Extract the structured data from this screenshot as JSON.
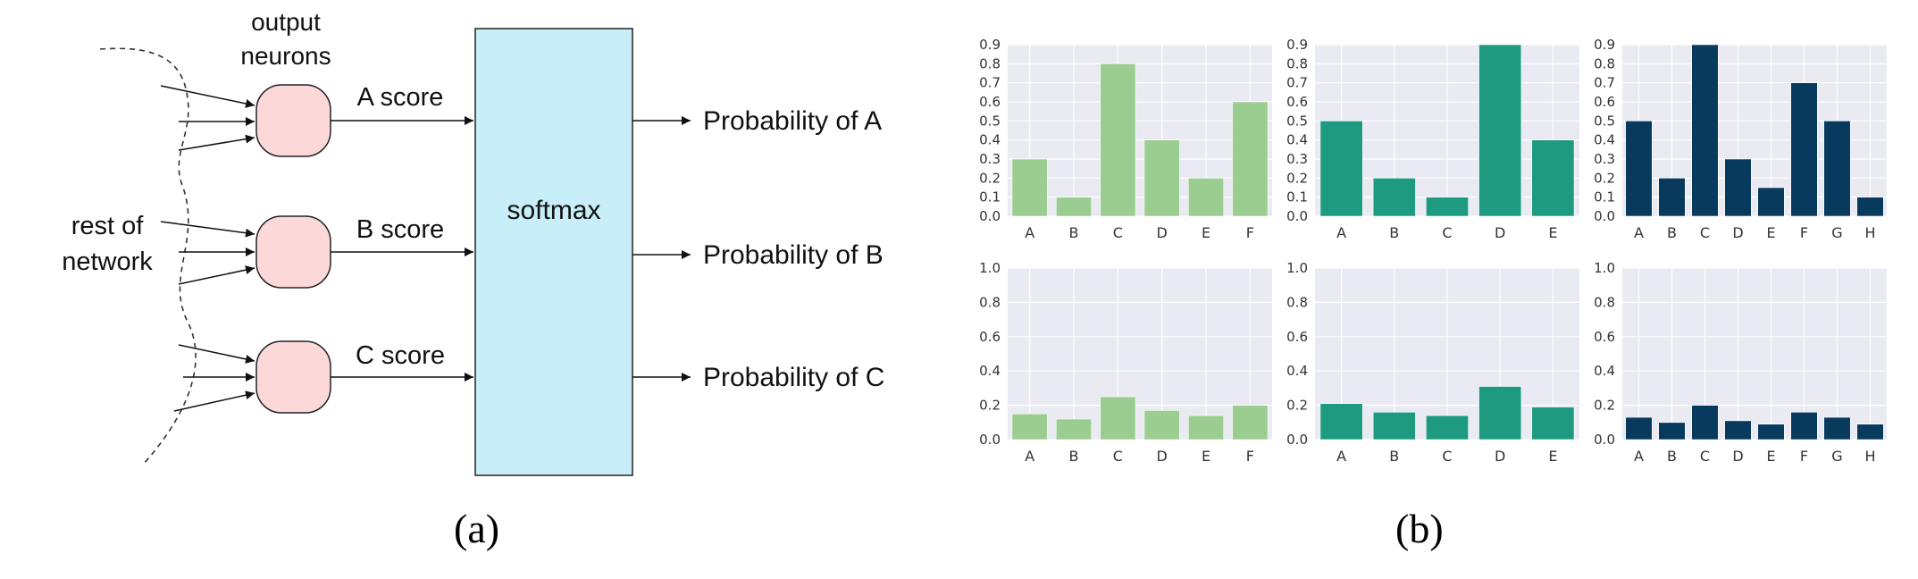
{
  "diagram": {
    "output_neurons_label": [
      "output",
      "neurons"
    ],
    "rest_label": [
      "rest of",
      "network"
    ],
    "softmax_label": "softmax",
    "scores": [
      "A score",
      "B score",
      "C score"
    ],
    "outputs": [
      "Probability of A",
      "Probability of B",
      "Probability of C"
    ],
    "colors": {
      "neuron_fill": "#fcd8d8",
      "softmax_fill": "#c8eef7"
    }
  },
  "captions": {
    "a": "(a)",
    "b": "(b)"
  },
  "chart_data": [
    {
      "type": "bar",
      "categories": [
        "A",
        "B",
        "C",
        "D",
        "E",
        "F"
      ],
      "values": [
        0.3,
        0.1,
        0.8,
        0.4,
        0.2,
        0.6
      ],
      "ylim": [
        0,
        0.9
      ],
      "yticks": [
        "0.0",
        "0.1",
        "0.2",
        "0.3",
        "0.4",
        "0.5",
        "0.6",
        "0.7",
        "0.8",
        "0.9"
      ],
      "color": "#9acd8f"
    },
    {
      "type": "bar",
      "categories": [
        "A",
        "B",
        "C",
        "D",
        "E"
      ],
      "values": [
        0.5,
        0.2,
        0.1,
        0.9,
        0.4
      ],
      "ylim": [
        0,
        0.9
      ],
      "yticks": [
        "0.0",
        "0.1",
        "0.2",
        "0.3",
        "0.4",
        "0.5",
        "0.6",
        "0.7",
        "0.8",
        "0.9"
      ],
      "color": "#1d9a80"
    },
    {
      "type": "bar",
      "categories": [
        "A",
        "B",
        "C",
        "D",
        "E",
        "F",
        "G",
        "H"
      ],
      "values": [
        0.5,
        0.2,
        0.9,
        0.3,
        0.15,
        0.7,
        0.5,
        0.1
      ],
      "ylim": [
        0,
        0.9
      ],
      "yticks": [
        "0.0",
        "0.1",
        "0.2",
        "0.3",
        "0.4",
        "0.5",
        "0.6",
        "0.7",
        "0.8",
        "0.9"
      ],
      "color": "#083a5e"
    },
    {
      "type": "bar",
      "categories": [
        "A",
        "B",
        "C",
        "D",
        "E",
        "F"
      ],
      "values": [
        0.15,
        0.12,
        0.25,
        0.17,
        0.14,
        0.2
      ],
      "ylim": [
        0,
        1.0
      ],
      "yticks": [
        "0.0",
        "0.2",
        "0.4",
        "0.6",
        "0.8",
        "1.0"
      ],
      "color": "#9acd8f"
    },
    {
      "type": "bar",
      "categories": [
        "A",
        "B",
        "C",
        "D",
        "E"
      ],
      "values": [
        0.21,
        0.16,
        0.14,
        0.31,
        0.19
      ],
      "ylim": [
        0,
        1.0
      ],
      "yticks": [
        "0.0",
        "0.2",
        "0.4",
        "0.6",
        "0.8",
        "1.0"
      ],
      "color": "#1d9a80"
    },
    {
      "type": "bar",
      "categories": [
        "A",
        "B",
        "C",
        "D",
        "E",
        "F",
        "G",
        "H"
      ],
      "values": [
        0.13,
        0.1,
        0.2,
        0.11,
        0.09,
        0.16,
        0.13,
        0.09
      ],
      "ylim": [
        0,
        1.0
      ],
      "yticks": [
        "0.0",
        "0.2",
        "0.4",
        "0.6",
        "0.8",
        "1.0"
      ],
      "color": "#083a5e"
    }
  ]
}
